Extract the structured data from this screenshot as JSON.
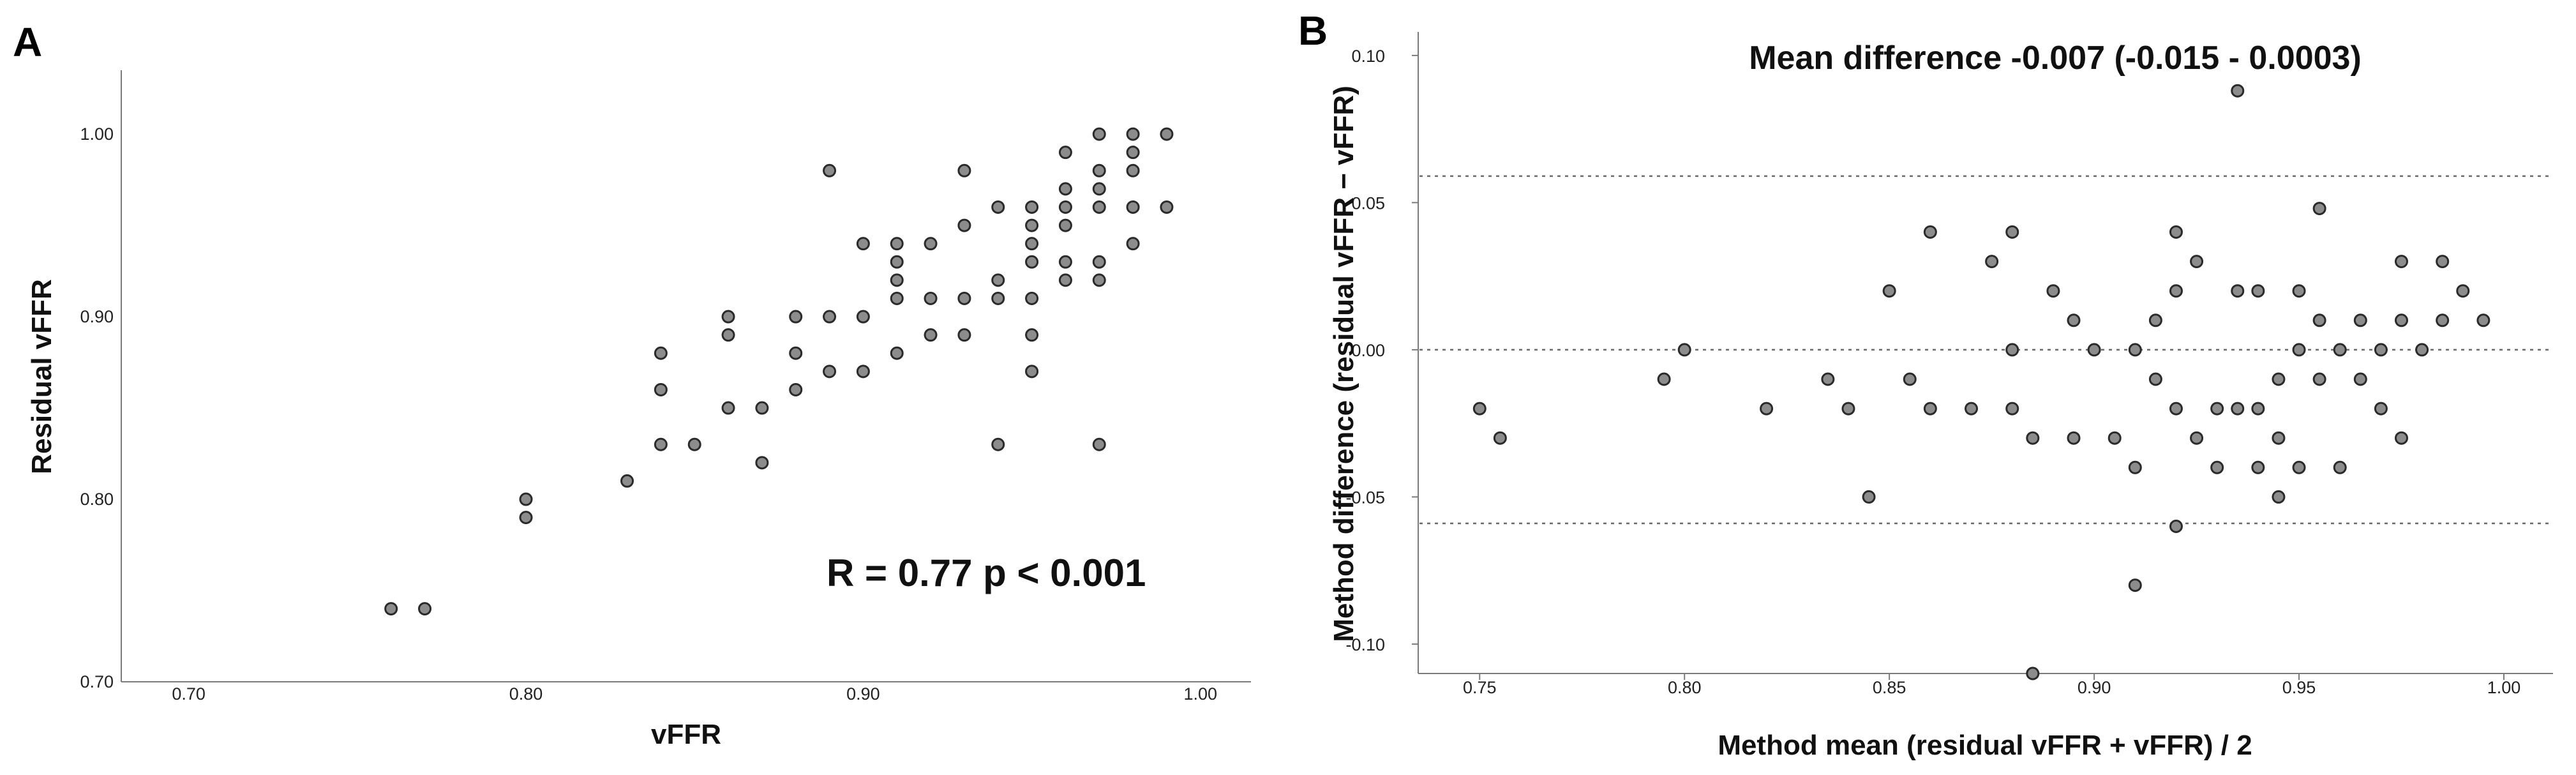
{
  "colors": {
    "point_fill": "#8c8c8c",
    "point_stroke": "#2a2a2a",
    "axis": "#7a7a7a",
    "text": "#111111"
  },
  "chart_data": [
    {
      "panel": "A",
      "type": "scatter",
      "xlabel": "vFFR",
      "ylabel": "Residual vFFR",
      "xlim": [
        0.68,
        1.015
      ],
      "ylim": [
        0.7,
        1.035
      ],
      "xticks": [
        "0.70",
        "0.80",
        "0.90",
        "1.00"
      ],
      "yticks": [
        "0.70",
        "0.80",
        "0.90",
        "1.00"
      ],
      "annotation": "R = 0.77  p < 0.001",
      "grid": false,
      "points": [
        [
          0.76,
          0.74
        ],
        [
          0.77,
          0.74
        ],
        [
          0.8,
          0.8
        ],
        [
          0.8,
          0.79
        ],
        [
          0.83,
          0.81
        ],
        [
          0.84,
          0.88
        ],
        [
          0.84,
          0.86
        ],
        [
          0.84,
          0.83
        ],
        [
          0.85,
          0.83
        ],
        [
          0.86,
          0.9
        ],
        [
          0.86,
          0.89
        ],
        [
          0.86,
          0.85
        ],
        [
          0.87,
          0.85
        ],
        [
          0.87,
          0.82
        ],
        [
          0.88,
          0.9
        ],
        [
          0.88,
          0.88
        ],
        [
          0.88,
          0.86
        ],
        [
          0.89,
          0.98
        ],
        [
          0.89,
          0.9
        ],
        [
          0.89,
          0.87
        ],
        [
          0.9,
          0.94
        ],
        [
          0.9,
          0.9
        ],
        [
          0.9,
          0.87
        ],
        [
          0.91,
          0.94
        ],
        [
          0.91,
          0.93
        ],
        [
          0.91,
          0.92
        ],
        [
          0.91,
          0.91
        ],
        [
          0.91,
          0.88
        ],
        [
          0.92,
          0.94
        ],
        [
          0.92,
          0.91
        ],
        [
          0.92,
          0.89
        ],
        [
          0.93,
          0.98
        ],
        [
          0.93,
          0.95
        ],
        [
          0.93,
          0.91
        ],
        [
          0.93,
          0.89
        ],
        [
          0.94,
          0.96
        ],
        [
          0.94,
          0.92
        ],
        [
          0.94,
          0.91
        ],
        [
          0.94,
          0.83
        ],
        [
          0.95,
          0.96
        ],
        [
          0.95,
          0.95
        ],
        [
          0.95,
          0.94
        ],
        [
          0.95,
          0.93
        ],
        [
          0.95,
          0.91
        ],
        [
          0.95,
          0.89
        ],
        [
          0.95,
          0.87
        ],
        [
          0.96,
          0.99
        ],
        [
          0.96,
          0.97
        ],
        [
          0.96,
          0.96
        ],
        [
          0.96,
          0.95
        ],
        [
          0.96,
          0.93
        ],
        [
          0.96,
          0.92
        ],
        [
          0.97,
          1.0
        ],
        [
          0.97,
          0.98
        ],
        [
          0.97,
          0.97
        ],
        [
          0.97,
          0.96
        ],
        [
          0.97,
          0.93
        ],
        [
          0.97,
          0.92
        ],
        [
          0.97,
          0.83
        ],
        [
          0.98,
          1.0
        ],
        [
          0.98,
          0.99
        ],
        [
          0.98,
          0.98
        ],
        [
          0.98,
          0.96
        ],
        [
          0.98,
          0.94
        ],
        [
          0.99,
          1.0
        ],
        [
          0.99,
          0.96
        ]
      ]
    },
    {
      "panel": "B",
      "type": "scatter",
      "title": "Mean difference -0.007 (-0.015 - 0.0003)",
      "xlabel": "Method mean (residual vFFR + vFFR) / 2",
      "ylabel": "Method difference (residual vFFR − vFFR)",
      "xlim": [
        0.735,
        1.012
      ],
      "ylim": [
        -0.11,
        0.108
      ],
      "xticks": [
        "0.75",
        "0.80",
        "0.85",
        "0.90",
        "0.95",
        "1.00"
      ],
      "yticks": [
        "-0.10",
        "-0.05",
        "0.00",
        "0.05",
        "0.10"
      ],
      "reference_lines_y": [
        0.059,
        0.0,
        -0.059
      ],
      "grid": false,
      "points": [
        [
          0.75,
          -0.02
        ],
        [
          0.755,
          -0.03
        ],
        [
          0.795,
          -0.01
        ],
        [
          0.8,
          0.0
        ],
        [
          0.82,
          -0.02
        ],
        [
          0.835,
          -0.01
        ],
        [
          0.84,
          -0.02
        ],
        [
          0.845,
          -0.05
        ],
        [
          0.85,
          0.02
        ],
        [
          0.855,
          -0.01
        ],
        [
          0.86,
          0.04
        ],
        [
          0.86,
          -0.02
        ],
        [
          0.87,
          -0.02
        ],
        [
          0.875,
          0.03
        ],
        [
          0.88,
          0.04
        ],
        [
          0.88,
          0.0
        ],
        [
          0.88,
          -0.02
        ],
        [
          0.885,
          -0.03
        ],
        [
          0.885,
          -0.11
        ],
        [
          0.89,
          0.02
        ],
        [
          0.895,
          0.01
        ],
        [
          0.9,
          0.0
        ],
        [
          0.895,
          -0.03
        ],
        [
          0.905,
          -0.03
        ],
        [
          0.91,
          0.0
        ],
        [
          0.91,
          -0.04
        ],
        [
          0.91,
          -0.08
        ],
        [
          0.915,
          0.01
        ],
        [
          0.915,
          -0.01
        ],
        [
          0.92,
          0.04
        ],
        [
          0.92,
          0.02
        ],
        [
          0.92,
          -0.02
        ],
        [
          0.92,
          -0.06
        ],
        [
          0.925,
          0.03
        ],
        [
          0.925,
          -0.03
        ],
        [
          0.93,
          -0.02
        ],
        [
          0.93,
          -0.04
        ],
        [
          0.935,
          0.02
        ],
        [
          0.935,
          0.088
        ],
        [
          0.935,
          -0.02
        ],
        [
          0.94,
          0.02
        ],
        [
          0.94,
          -0.02
        ],
        [
          0.94,
          -0.04
        ],
        [
          0.945,
          -0.01
        ],
        [
          0.945,
          -0.03
        ],
        [
          0.945,
          -0.05
        ],
        [
          0.95,
          0.02
        ],
        [
          0.95,
          0.0
        ],
        [
          0.95,
          -0.04
        ],
        [
          0.955,
          0.048
        ],
        [
          0.955,
          0.01
        ],
        [
          0.955,
          -0.01
        ],
        [
          0.96,
          0.0
        ],
        [
          0.96,
          -0.04
        ],
        [
          0.965,
          0.01
        ],
        [
          0.965,
          -0.01
        ],
        [
          0.97,
          0.0
        ],
        [
          0.97,
          -0.02
        ],
        [
          0.975,
          0.03
        ],
        [
          0.975,
          0.01
        ],
        [
          0.975,
          -0.03
        ],
        [
          0.98,
          0.0
        ],
        [
          0.985,
          0.03
        ],
        [
          0.985,
          0.01
        ],
        [
          0.99,
          0.02
        ],
        [
          0.995,
          0.01
        ]
      ]
    }
  ]
}
